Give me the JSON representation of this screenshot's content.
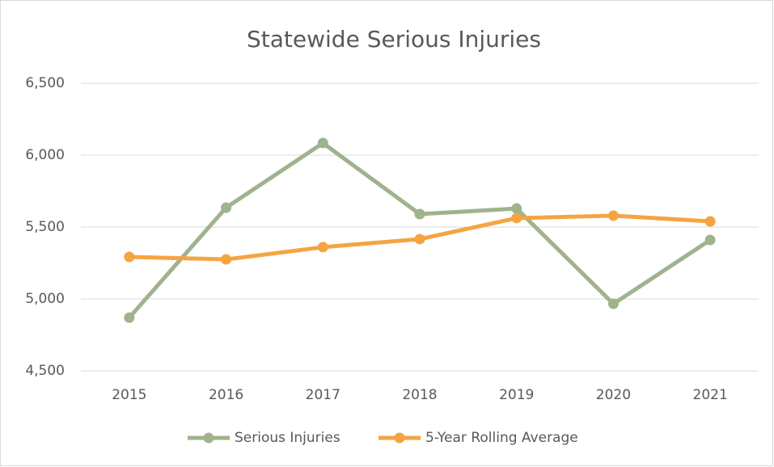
{
  "chart_data": {
    "type": "line",
    "title": "Statewide Serious Injuries",
    "categories": [
      "2015",
      "2016",
      "2017",
      "2018",
      "2019",
      "2020",
      "2021"
    ],
    "series": [
      {
        "name": "Serious Injuries",
        "color": "#9fb38c",
        "values": [
          4870,
          5635,
          6084,
          5590,
          5629,
          4966,
          5410
        ]
      },
      {
        "name": "5-Year Rolling Average",
        "color": "#f5a442",
        "values": [
          5292,
          5275,
          5360,
          5416,
          5562,
          5579,
          5539
        ]
      }
    ],
    "ylim": [
      4500,
      6500
    ],
    "yticks": [
      {
        "value": 4500,
        "label": "4,500"
      },
      {
        "value": 5000,
        "label": "5,000"
      },
      {
        "value": 5500,
        "label": "5,500"
      },
      {
        "value": 6000,
        "label": "6,000"
      },
      {
        "value": 6500,
        "label": "6,500"
      }
    ],
    "grid": true,
    "legend": "bottom"
  }
}
